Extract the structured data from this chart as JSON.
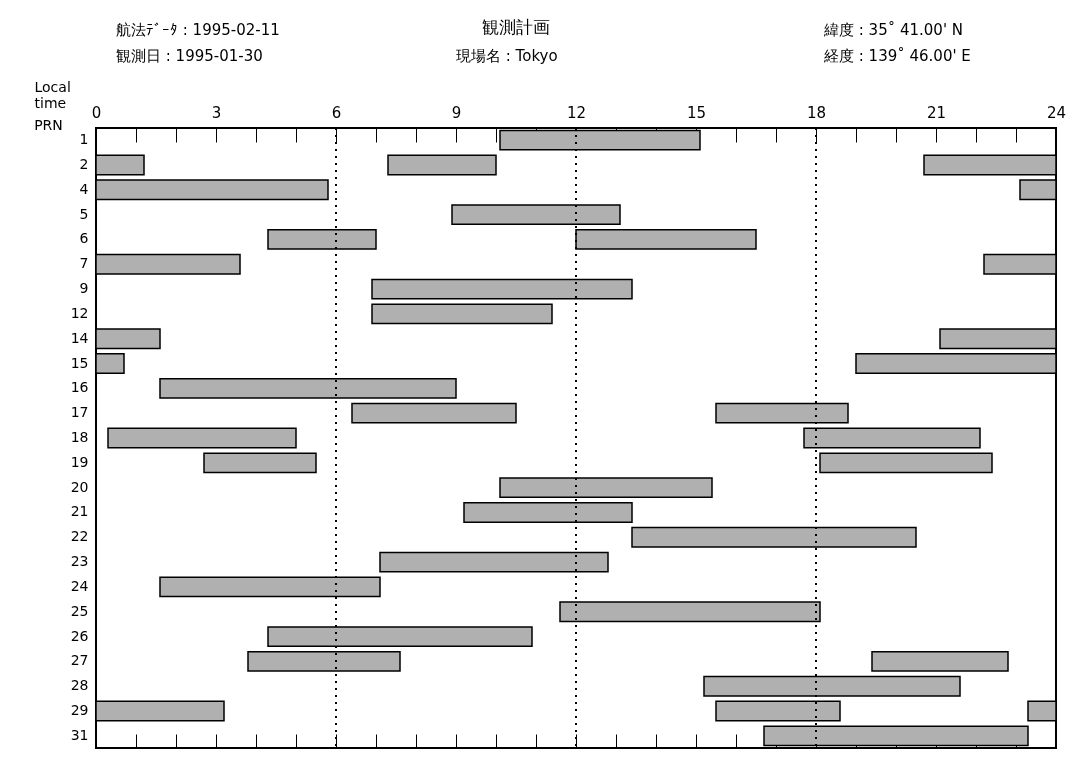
{
  "chart_data": {
    "type": "bar",
    "orientation": "horizontal",
    "title": "観測計画",
    "xlabel": "Local time",
    "ylabel": "PRN",
    "annotations": [
      "航法ﾃﾞｰﾀ : 1995-02-11",
      "観測日 : 1995-01-30",
      "現場名 : Tokyo",
      "緯度 : 35˚ 41.00' N",
      "経度 : 139˚ 46.00' E"
    ],
    "categories": [
      "1",
      "2",
      "4",
      "5",
      "6",
      "7",
      "9",
      "12",
      "14",
      "15",
      "16",
      "17",
      "18",
      "19",
      "20",
      "21",
      "22",
      "23",
      "24",
      "25",
      "26",
      "27",
      "28",
      "29",
      "31"
    ],
    "series": [
      {
        "color": "#b0b0b0",
        "base": [
          10.1,
          0,
          0,
          8.9,
          4.3,
          0,
          6.9,
          6.9,
          0,
          0,
          1.6,
          6.4,
          0.3,
          2.7,
          10.1,
          9.2,
          13.4,
          7.1,
          1.6,
          11.6,
          4.3,
          3.8,
          15.2,
          0,
          16.7
        ],
        "values": [
          5.0,
          1.2,
          5.8,
          4.2,
          2.7,
          3.6,
          6.5,
          4.5,
          1.6,
          0.7,
          7.4,
          4.1,
          4.7,
          2.8,
          5.3,
          4.2,
          7.1,
          5.7,
          5.5,
          6.5,
          6.6,
          3.8,
          6.4,
          3.2,
          6.6
        ]
      },
      {
        "color": "#b0b0b0",
        "base": [
          null,
          7.3,
          23.1,
          null,
          12.0,
          22.2,
          null,
          null,
          21.1,
          19.0,
          null,
          15.5,
          17.7,
          18.1,
          null,
          null,
          null,
          null,
          null,
          null,
          null,
          19.4,
          null,
          15.5,
          null
        ],
        "values": [
          null,
          2.7,
          0.9,
          null,
          4.5,
          1.8,
          null,
          null,
          2.9,
          5.0,
          null,
          3.3,
          4.4,
          4.3,
          null,
          null,
          null,
          null,
          null,
          null,
          null,
          3.4,
          null,
          3.1,
          null
        ]
      },
      {
        "color": "#b0b0b0",
        "base": [
          null,
          20.7,
          null,
          null,
          null,
          null,
          null,
          null,
          null,
          null,
          null,
          null,
          null,
          null,
          null,
          null,
          null,
          null,
          null,
          null,
          null,
          null,
          null,
          23.3,
          null
        ],
        "values": [
          null,
          3.3,
          null,
          null,
          null,
          null,
          null,
          null,
          null,
          null,
          null,
          null,
          null,
          null,
          null,
          null,
          null,
          null,
          null,
          null,
          null,
          null,
          null,
          0.7,
          null
        ]
      }
    ],
    "xlim": [
      0,
      24
    ],
    "xticks": [
      0,
      {
        "value": 1,
        "label": null
      },
      {
        "value": 2,
        "label": null
      },
      3,
      {
        "value": 4,
        "label": null
      },
      {
        "value": 5,
        "label": null
      },
      6,
      {
        "value": 7,
        "label": null
      },
      {
        "value": 8,
        "label": null
      },
      9,
      {
        "value": 10,
        "label": null
      },
      {
        "value": 11,
        "label": null
      },
      12,
      {
        "value": 13,
        "label": null
      },
      {
        "value": 14,
        "label": null
      },
      15,
      {
        "value": 16,
        "label": null
      },
      {
        "value": 17,
        "label": null
      },
      18,
      {
        "value": 19,
        "label": null
      },
      {
        "value": 20,
        "label": null
      },
      21,
      {
        "value": 22,
        "label": null
      },
      {
        "value": 23,
        "label": null
      },
      24
    ],
    "ref_lines": [
      {
        "axis": "x",
        "value": 6,
        "line_style": "dotted"
      },
      {
        "axis": "x",
        "value": 12,
        "line_style": "dotted"
      },
      {
        "axis": "x",
        "value": 18,
        "line_style": "dotted"
      }
    ],
    "grid": false,
    "legend": false
  }
}
